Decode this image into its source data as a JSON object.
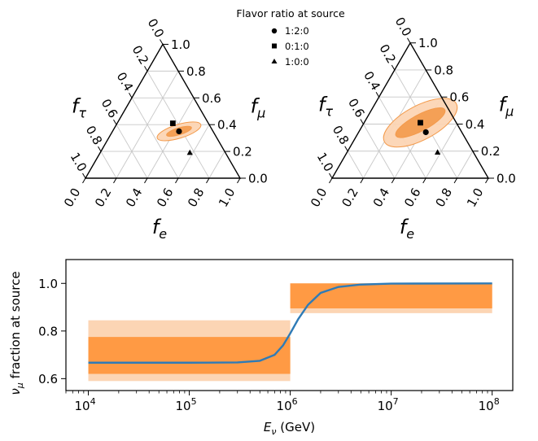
{
  "chart_data": [
    {
      "type": "ternary",
      "panel": "left",
      "axes": {
        "bottom": {
          "label": "f",
          "sub": "e",
          "ticks": [
            "0.0",
            "0.2",
            "0.4",
            "0.6",
            "0.8",
            "1.0"
          ]
        },
        "right": {
          "label": "f",
          "sub": "μ",
          "ticks": [
            "0.0",
            "0.2",
            "0.4",
            "0.6",
            "0.8",
            "1.0"
          ]
        },
        "left": {
          "label": "f",
          "sub": "τ",
          "ticks": [
            "0.0",
            "0.2",
            "0.4",
            "0.6",
            "0.8",
            "1.0"
          ]
        }
      },
      "grid": true,
      "points": [
        {
          "label": "1:2:0",
          "marker": "circle",
          "fe": 0.43,
          "fmu": 0.35,
          "ftau": 0.22
        },
        {
          "label": "0:1:0",
          "marker": "square",
          "fe": 0.36,
          "fmu": 0.41,
          "ftau": 0.23
        },
        {
          "label": "1:0:0",
          "marker": "triangle",
          "fe": 0.58,
          "fmu": 0.19,
          "ftau": 0.23
        }
      ],
      "regions": [
        {
          "level": "outer",
          "center": {
            "fe": 0.43,
            "fmu": 0.35
          },
          "color": "#fcd5b4"
        },
        {
          "level": "inner",
          "center": {
            "fe": 0.43,
            "fmu": 0.35
          },
          "color": "#f39a4b"
        }
      ]
    },
    {
      "type": "ternary",
      "panel": "right",
      "axes": {
        "bottom": {
          "label": "f",
          "sub": "e",
          "ticks": [
            "0.0",
            "0.2",
            "0.4",
            "0.6",
            "0.8",
            "1.0"
          ]
        },
        "right": {
          "label": "f",
          "sub": "μ",
          "ticks": [
            "0.0",
            "0.2",
            "0.4",
            "0.6",
            "0.8",
            "1.0"
          ]
        },
        "left": {
          "label": "f",
          "sub": "τ",
          "ticks": [
            "0.0",
            "0.2",
            "0.4",
            "0.6",
            "0.8",
            "1.0"
          ]
        }
      },
      "grid": true,
      "points": [
        {
          "label": "1:2:0",
          "marker": "circle",
          "fe": 0.43,
          "fmu": 0.34,
          "ftau": 0.23
        },
        {
          "label": "0:1:0",
          "marker": "square",
          "fe": 0.36,
          "fmu": 0.41,
          "ftau": 0.23
        },
        {
          "label": "1:0:0",
          "marker": "triangle",
          "fe": 0.58,
          "fmu": 0.19,
          "ftau": 0.23
        }
      ],
      "regions": [
        {
          "level": "outer",
          "center": {
            "fe": 0.36,
            "fmu": 0.41
          },
          "color": "#fcd5b4"
        },
        {
          "level": "inner",
          "center": {
            "fe": 0.36,
            "fmu": 0.41
          },
          "color": "#f39a4b"
        }
      ]
    },
    {
      "type": "line",
      "xscale": "log",
      "xlim": [
        6000,
        160000000
      ],
      "ylim": [
        0.55,
        1.1
      ],
      "xlabel": {
        "main": "E",
        "sub": "ν",
        "unit": " (GeV)"
      },
      "ylabel": {
        "sub": "μ",
        "rest": " fraction at source"
      },
      "xticks": [
        {
          "value": 10000,
          "mantissa": "10",
          "exp": "4"
        },
        {
          "value": 100000,
          "mantissa": "10",
          "exp": "5"
        },
        {
          "value": 1000000,
          "mantissa": "10",
          "exp": "6"
        },
        {
          "value": 10000000,
          "mantissa": "10",
          "exp": "7"
        },
        {
          "value": 100000000,
          "mantissa": "10",
          "exp": "8"
        }
      ],
      "yticks": [
        "0.6",
        "0.8",
        "1.0"
      ],
      "bands": [
        {
          "x": [
            10000,
            1000000
          ],
          "y": [
            0.59,
            0.845
          ],
          "color": "#fcd5b4"
        },
        {
          "x": [
            10000,
            1000000
          ],
          "y": [
            0.62,
            0.775
          ],
          "color": "#ff9a44"
        },
        {
          "x": [
            1000000,
            100000000
          ],
          "y": [
            0.875,
            1.0
          ],
          "color": "#fcd5b4"
        },
        {
          "x": [
            1000000,
            100000000
          ],
          "y": [
            0.895,
            1.0
          ],
          "color": "#ff9a44"
        }
      ],
      "series": [
        {
          "color": "#2f7bb6",
          "x": [
            10000,
            100000,
            300000,
            500000,
            700000,
            850000,
            1000000,
            1200000,
            1500000,
            2000000,
            3000000,
            5000000,
            10000000,
            100000000
          ],
          "y": [
            0.667,
            0.667,
            0.668,
            0.675,
            0.7,
            0.74,
            0.79,
            0.85,
            0.91,
            0.96,
            0.985,
            0.995,
            0.999,
            1.0
          ]
        }
      ]
    }
  ],
  "legend": {
    "title": "Flavor ratio at source",
    "items": [
      {
        "label": "1:2:0",
        "marker": "circle"
      },
      {
        "label": "0:1:0",
        "marker": "square"
      },
      {
        "label": "1:0:0",
        "marker": "triangle"
      }
    ]
  }
}
